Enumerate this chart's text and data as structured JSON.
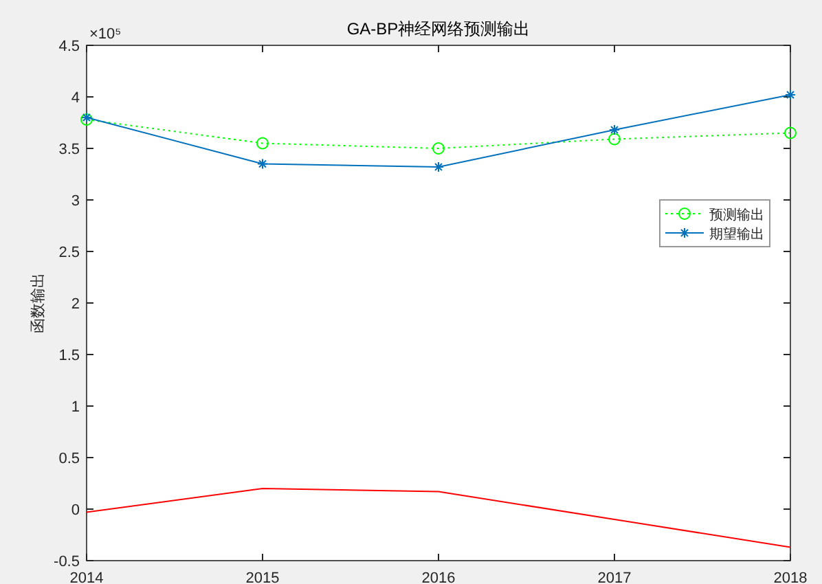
{
  "chart_data": {
    "type": "line",
    "title": "GA-BP神经网络预测输出",
    "ylabel": "函数输出",
    "annotations": [
      "×10⁵"
    ],
    "x": [
      2014,
      2015,
      2016,
      2017,
      2018
    ],
    "series": [
      {
        "name": "预测输出",
        "color": "#00ff00",
        "values": [
          3.78,
          3.55,
          3.5,
          3.59,
          3.65
        ],
        "marker": "circle",
        "line_style": "dotted"
      },
      {
        "name": "期望输出",
        "color": "#0072bd",
        "values": [
          3.8,
          3.35,
          3.32,
          3.68,
          4.02
        ],
        "marker": "cross",
        "line_style": "solid"
      },
      {
        "color": "#ff0000",
        "values": [
          -0.03,
          0.2,
          0.17,
          -0.1,
          -0.37
        ],
        "marker": "none",
        "line_style": "solid"
      }
    ],
    "xlim": [
      2014,
      2018
    ],
    "xticks": [
      2014,
      2015,
      2016,
      2017,
      2018
    ],
    "ylim": [
      -0.5,
      4.5
    ],
    "yticks": [
      -0.5,
      0,
      0.5,
      1,
      1.5,
      2,
      2.5,
      3,
      3.5,
      4,
      4.5
    ],
    "grid": false,
    "legend": "right"
  }
}
